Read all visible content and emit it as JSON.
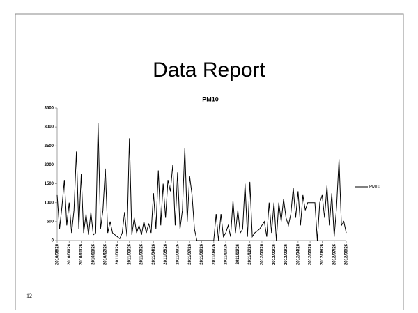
{
  "slide": {
    "title": "Data Report",
    "number": "12"
  },
  "chart_data": {
    "type": "line",
    "title": "PM10",
    "categories": [
      "2010/08/26",
      null,
      null,
      null,
      null,
      "2010/09/26",
      null,
      null,
      null,
      null,
      "2010/10/26",
      null,
      null,
      null,
      null,
      "2010/11/26",
      null,
      null,
      null,
      null,
      "2010/12/26",
      null,
      null,
      null,
      null,
      "2011/01/26",
      null,
      null,
      null,
      null,
      "2011/02/26",
      null,
      null,
      null,
      null,
      "2011/03/26",
      null,
      null,
      null,
      null,
      "2011/04/26",
      null,
      null,
      null,
      null,
      "2011/05/26",
      null,
      null,
      null,
      null,
      "2011/06/26",
      null,
      null,
      null,
      null,
      "2011/07/26",
      null,
      null,
      null,
      null,
      "2011/08/26",
      null,
      null,
      null,
      null,
      "2011/09/26",
      null,
      null,
      null,
      null,
      "2011/10/26",
      null,
      null,
      null,
      null,
      "2011/11/26",
      null,
      null,
      null,
      null,
      "2011/12/26",
      null,
      null,
      null,
      null,
      "2012/01/26",
      null,
      null,
      null,
      null,
      "2012/02/26",
      null,
      null,
      null,
      null,
      "2012/03/26",
      null,
      null,
      null,
      null,
      "2012/04/26",
      null,
      null,
      null,
      null,
      "2012/05/26",
      null,
      null,
      null,
      null,
      "2012/06/26",
      null,
      null,
      null,
      null,
      "2012/07/26",
      null,
      null,
      null,
      null,
      "2012/08/26"
    ],
    "series": [
      {
        "name": "PM10",
        "color": "#000000",
        "values": [
          1200,
          300,
          900,
          1600,
          400,
          1000,
          200,
          800,
          2350,
          300,
          1750,
          200,
          700,
          150,
          750,
          150,
          200,
          3100,
          300,
          800,
          1900,
          200,
          500,
          200,
          150,
          100,
          50,
          200,
          750,
          100,
          2700,
          150,
          600,
          200,
          400,
          150,
          500,
          200,
          450,
          200,
          1250,
          300,
          1850,
          400,
          1500,
          600,
          1600,
          1300,
          2000,
          400,
          1800,
          300,
          800,
          2450,
          500,
          1700,
          1200,
          300,
          0,
          0,
          0,
          0,
          0,
          0,
          0,
          0,
          700,
          0,
          700,
          100,
          200,
          400,
          100,
          1050,
          200,
          800,
          200,
          300,
          1500,
          100,
          1550,
          100,
          200,
          250,
          300,
          400,
          500,
          100,
          1000,
          200,
          1000,
          0,
          1000,
          500,
          1100,
          600,
          400,
          700,
          1400,
          600,
          1300,
          400,
          1200,
          800,
          1000,
          1000,
          1000,
          1000,
          0,
          1000,
          1200,
          600,
          1450,
          400,
          1250,
          100,
          900,
          2150,
          400,
          500,
          200
        ]
      }
    ],
    "ylim": [
      0,
      3500
    ],
    "yticks": [
      0,
      500,
      1000,
      1500,
      2000,
      2500,
      3000,
      3500
    ],
    "grid": false,
    "legend": "right"
  }
}
